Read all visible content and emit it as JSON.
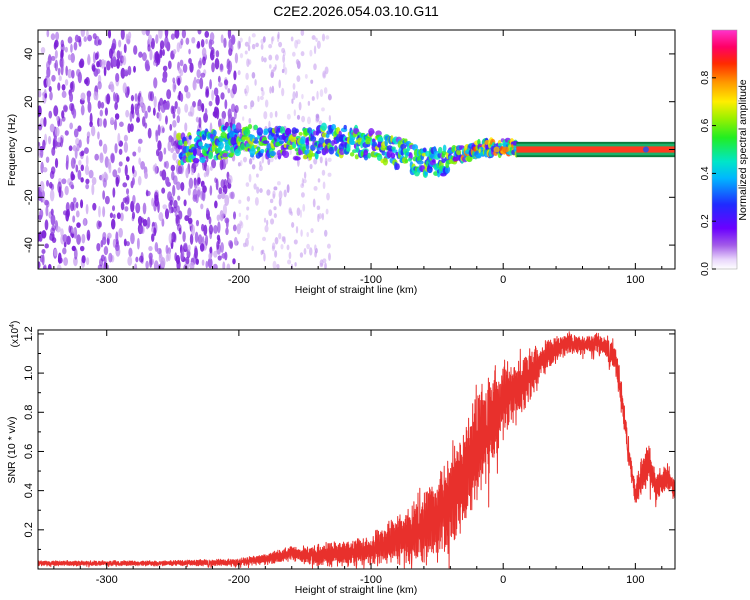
{
  "title": "C2E2.2026.054.03.10.G11",
  "colors": {
    "trace": "#e8302c",
    "sparse_dots": "#c9a2ef",
    "dense_dots": "#7a1fd6",
    "band": "#ff3b1f",
    "band_outline": "#1bb36b",
    "axis": "#000000"
  },
  "chart_data": [
    {
      "type": "heatmap",
      "name": "spectrogram",
      "title": "C2E2.2026.054.03.10.G11",
      "xlabel": "Height of straight line (km)",
      "ylabel": "Frequency (Hz)",
      "xlim": [
        -352,
        130
      ],
      "ylim": [
        -50,
        50
      ],
      "xticks": [
        -300,
        -200,
        -100,
        0,
        100
      ],
      "yticks": [
        -40,
        -20,
        0,
        20,
        40
      ],
      "xtick_labels": [
        "-300",
        "-200",
        "-100",
        "0",
        "100"
      ],
      "ytick_labels": [
        "-40",
        "-20",
        "0",
        "20",
        "40"
      ],
      "colorbar": {
        "label": "Normalized spectral amplitude",
        "range": [
          0,
          1
        ],
        "ticks": [
          0,
          0.2,
          0.4,
          0.6,
          0.8
        ],
        "tick_labels": [
          "0.0",
          "0.2",
          "0.4",
          "0.6",
          "0.8"
        ],
        "colormap": "rainbow (white-violet-blue-cyan-green-yellow-red-magenta)"
      },
      "features": [
        {
          "name": "dense noise region",
          "x_range": [
            -352,
            -200
          ],
          "y_range": [
            -50,
            50
          ],
          "amplitude": 0.1
        },
        {
          "name": "sparse noise region",
          "x_range": [
            -200,
            -130
          ],
          "y_range": [
            -50,
            50
          ],
          "amplitude": 0.03
        },
        {
          "name": "signal track",
          "points": [
            [
              -245,
              0
            ],
            [
              -200,
              4
            ],
            [
              -160,
              2
            ],
            [
              -130,
              4
            ],
            [
              -100,
              2
            ],
            [
              -70,
              -3
            ],
            [
              -50,
              -6
            ],
            [
              -40,
              -3
            ],
            [
              -20,
              0
            ],
            [
              0,
              1
            ],
            [
              10,
              1
            ]
          ],
          "amplitude_range": [
            0.2,
            0.7
          ]
        },
        {
          "name": "steady carrier line",
          "x_range": [
            10,
            130
          ],
          "y": 0,
          "amplitude": 0.85
        }
      ]
    },
    {
      "type": "line",
      "name": "snr",
      "xlabel": "Height of straight line (km)",
      "ylabel": "SNR (10 * v/v)",
      "scale_label": "(x10",
      "scale_exponent": "4",
      "xlim": [
        -352,
        130
      ],
      "ylim": [
        0,
        1.22
      ],
      "xticks": [
        -300,
        -200,
        -100,
        0,
        100
      ],
      "yticks": [
        0.2,
        0.4,
        0.6,
        0.8,
        1.0,
        1.2
      ],
      "xtick_labels": [
        "-300",
        "-200",
        "-100",
        "0",
        "100"
      ],
      "ytick_labels": [
        "0.2",
        "0.4",
        "0.6",
        "0.8",
        "1.0",
        "1.2"
      ],
      "series": [
        {
          "name": "SNR",
          "color": "#e8302c",
          "envelope_x": [
            -352,
            -300,
            -250,
            -200,
            -180,
            -160,
            -140,
            -120,
            -100,
            -80,
            -60,
            -50,
            -40,
            -30,
            -25,
            -20,
            -15,
            -10,
            -5,
            0,
            10,
            20,
            30,
            40,
            50,
            60,
            70,
            80,
            85,
            90,
            95,
            100,
            105,
            110,
            115,
            120,
            125,
            130
          ],
          "envelope_mean": [
            0.03,
            0.03,
            0.03,
            0.035,
            0.05,
            0.08,
            0.07,
            0.08,
            0.1,
            0.15,
            0.22,
            0.28,
            0.35,
            0.45,
            0.55,
            0.62,
            0.68,
            0.75,
            0.82,
            0.87,
            0.92,
            1.0,
            1.07,
            1.12,
            1.16,
            1.14,
            1.16,
            1.12,
            1.08,
            0.85,
            0.6,
            0.38,
            0.48,
            0.55,
            0.42,
            0.45,
            0.47,
            0.4
          ],
          "envelope_spread": [
            0.01,
            0.01,
            0.01,
            0.015,
            0.02,
            0.03,
            0.04,
            0.05,
            0.06,
            0.1,
            0.15,
            0.18,
            0.2,
            0.18,
            0.22,
            0.22,
            0.22,
            0.2,
            0.18,
            0.15,
            0.13,
            0.1,
            0.07,
            0.05,
            0.04,
            0.04,
            0.04,
            0.05,
            0.06,
            0.07,
            0.06,
            0.05,
            0.08,
            0.08,
            0.06,
            0.06,
            0.05,
            0.04
          ]
        }
      ]
    }
  ]
}
